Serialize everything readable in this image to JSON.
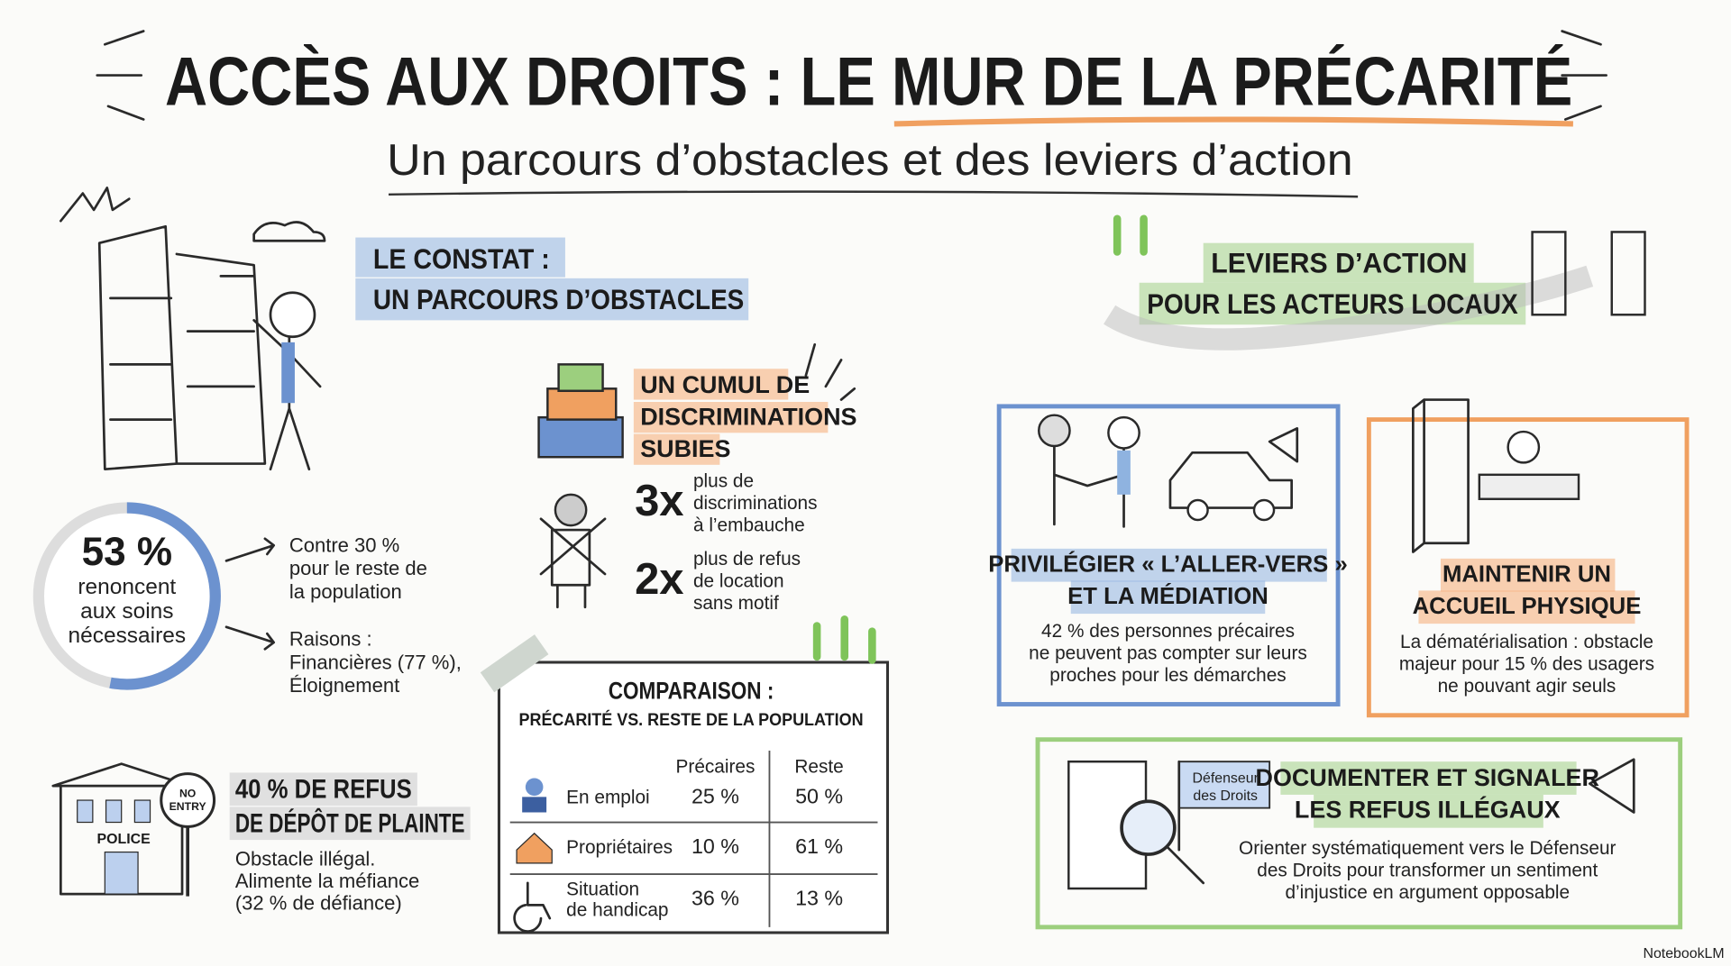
{
  "header": {
    "title": "ACCÈS AUX DROITS : LE MUR DE LA PRÉCARITÉ",
    "subtitle": "Un parcours d’obstacles et des leviers d’action"
  },
  "constat": {
    "heading": [
      "LE CONSTAT :",
      "UN PARCOURS D’OBSTACLES"
    ],
    "care": {
      "value": 53,
      "label": "53 %",
      "text": [
        "renoncent",
        "aux soins",
        "nécessaires"
      ],
      "notes": [
        [
          "Contre 30 %",
          "pour le reste de",
          "la population"
        ],
        [
          "Raisons :",
          "Financières (77 %),",
          "Éloignement"
        ]
      ]
    },
    "complaint": {
      "sign": [
        "NO",
        "ENTRY"
      ],
      "building": "POLICE",
      "heading": [
        "40 % DE REFUS",
        "DE DÉPÔT DE PLAINTE"
      ],
      "text": [
        "Obstacle illégal.",
        "Alimente la méfiance",
        "(32 % de défiance)"
      ]
    },
    "discrimination": {
      "heading": [
        "UN CUMUL DE",
        "DISCRIMINATIONS",
        "SUBIES"
      ],
      "stats": [
        {
          "factor": "3x",
          "text": [
            "plus de",
            "discriminations",
            "à l’embauche"
          ]
        },
        {
          "factor": "2x",
          "text": [
            "plus de refus",
            "de location",
            "sans motif"
          ]
        }
      ]
    },
    "comparison": {
      "title": "COMPARAISON :",
      "subtitle": "PRÉCARITÉ VS. RESTE DE LA POPULATION",
      "columns": [
        "Précaires",
        "Reste"
      ],
      "rows": [
        {
          "label": [
            "En emploi"
          ],
          "values": [
            "25 %",
            "50 %"
          ]
        },
        {
          "label": [
            "Propriétaires"
          ],
          "values": [
            "10 %",
            "61 %"
          ]
        },
        {
          "label": [
            "Situation",
            "de handicap"
          ],
          "values": [
            "36 %",
            "13 %"
          ]
        }
      ]
    }
  },
  "levers": {
    "heading": [
      "LEVIERS D’ACTION",
      "POUR LES ACTEURS LOCAUX"
    ],
    "cards": [
      {
        "title": [
          "PRIVILÉGIER « L’ALLER-VERS »",
          "ET LA MÉDIATION"
        ],
        "text": [
          "42 % des personnes précaires",
          "ne peuvent pas compter sur leurs",
          "proches pour les démarches"
        ]
      },
      {
        "title": [
          "MAINTENIR UN",
          "ACCUEIL PHYSIQUE"
        ],
        "text": [
          "La dématérialisation : obstacle",
          "majeur pour 15 % des usagers",
          "ne pouvant agir seuls"
        ]
      },
      {
        "flag": [
          "Défenseur",
          "des Droits"
        ],
        "title": [
          "DOCUMENTER ET SIGNALER",
          "LES REFUS ILLÉGAUX"
        ],
        "text": [
          "Orienter systématiquement vers le Défenseur",
          "des Droits pour transformer un sentiment",
          "d’injustice en argument opposable"
        ]
      }
    ]
  },
  "footer": {
    "brand": "NotebookLM"
  }
}
